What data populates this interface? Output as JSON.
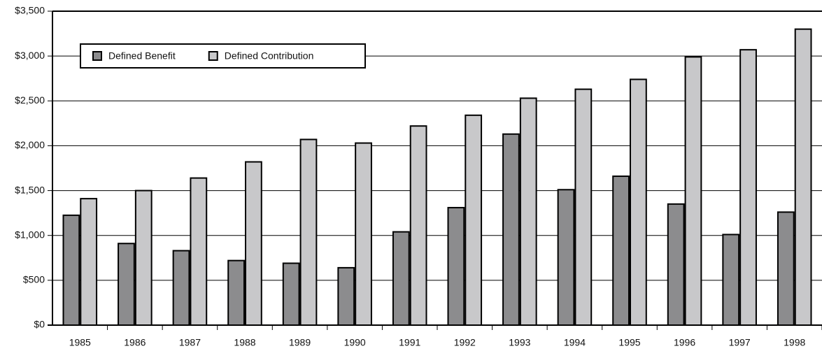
{
  "chart_data": {
    "type": "bar",
    "categories": [
      "1985",
      "1986",
      "1987",
      "1988",
      "1989",
      "1990",
      "1991",
      "1992",
      "1993",
      "1994",
      "1995",
      "1996",
      "1997",
      "1998"
    ],
    "series": [
      {
        "name": "Defined Benefit",
        "color": "#8c8c8e",
        "values": [
          1225,
          910,
          830,
          720,
          690,
          640,
          1040,
          1310,
          2130,
          1510,
          1660,
          1350,
          1010,
          1260
        ]
      },
      {
        "name": "Defined Contribution",
        "color": "#c8c8ca",
        "values": [
          1410,
          1500,
          1640,
          1820,
          2070,
          2030,
          2220,
          2340,
          2530,
          2630,
          2740,
          2990,
          3070,
          3300
        ]
      }
    ],
    "ylim": [
      0,
      3500
    ],
    "yticks": [
      {
        "value": 0,
        "label": "$0"
      },
      {
        "value": 500,
        "label": "$500"
      },
      {
        "value": 1000,
        "label": "$1,000"
      },
      {
        "value": 1500,
        "label": "$1,500"
      },
      {
        "value": 2000,
        "label": "$2,000"
      },
      {
        "value": 2500,
        "label": "$2,500"
      },
      {
        "value": 3000,
        "label": "$3,000"
      },
      {
        "value": 3500,
        "label": "$3,500"
      }
    ],
    "grid": true,
    "legend": "top-left"
  }
}
